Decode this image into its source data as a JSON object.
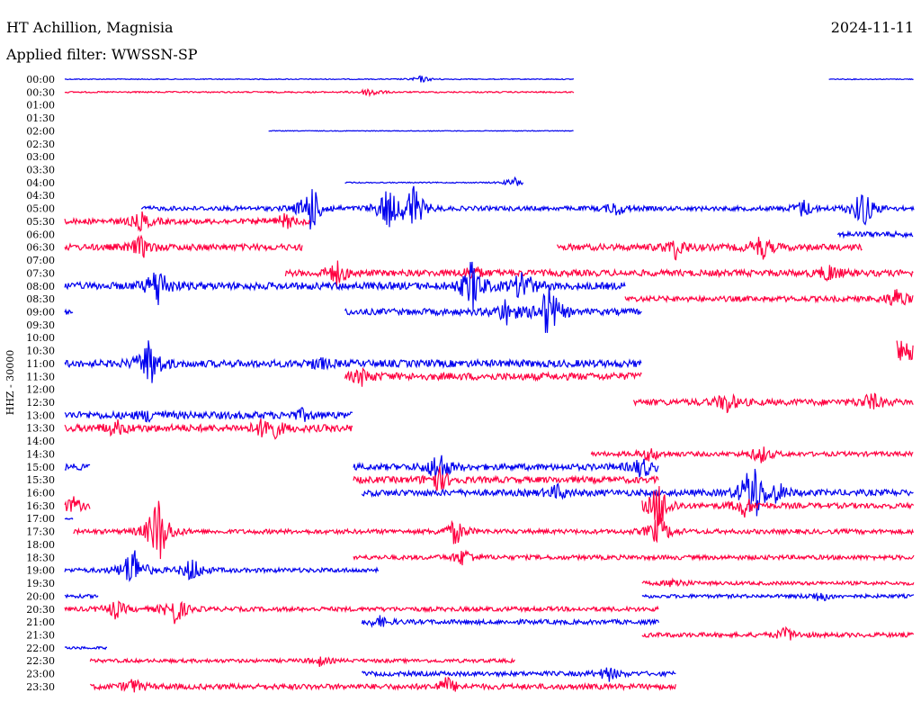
{
  "header": {
    "station": "HT Achillion, Magnisia",
    "date": "2024-11-11",
    "filter": "Applied filter: WWSSN-SP"
  },
  "chart_data": {
    "type": "line",
    "title": "HT Achillion, Magnisia",
    "date": "2024-11-11",
    "filter": "Applied filter: WWSSN-SP",
    "ylabel": "HHZ - 30000",
    "row_labels": [
      "00:00",
      "00:30",
      "01:00",
      "01:30",
      "02:00",
      "02:30",
      "03:00",
      "03:30",
      "04:00",
      "04:30",
      "05:00",
      "05:30",
      "06:00",
      "06:30",
      "07:00",
      "07:30",
      "08:00",
      "08:30",
      "09:00",
      "09:30",
      "10:00",
      "10:30",
      "11:00",
      "11:30",
      "12:00",
      "12:30",
      "13:00",
      "13:30",
      "14:00",
      "14:30",
      "15:00",
      "15:30",
      "16:00",
      "16:30",
      "17:00",
      "17:30",
      "18:00",
      "18:30",
      "19:00",
      "19:30",
      "20:00",
      "20:30",
      "21:00",
      "21:30",
      "22:00",
      "22:30",
      "23:00",
      "23:30"
    ],
    "colors": [
      "#0000ee",
      "#ff0040"
    ],
    "x_range": [
      0,
      1
    ],
    "rows": [
      {
        "segments": [
          [
            0.0,
            0.6
          ],
          [
            0.9,
            1.0
          ]
        ],
        "noise": 0.5,
        "events": [
          [
            0.42,
            4
          ]
        ]
      },
      {
        "segments": [
          [
            0.0,
            0.6
          ]
        ],
        "noise": 0.8,
        "events": [
          [
            0.36,
            6
          ]
        ]
      },
      {
        "segments": [],
        "noise": 0,
        "events": []
      },
      {
        "segments": [],
        "noise": 0,
        "events": []
      },
      {
        "segments": [
          [
            0.24,
            0.6
          ]
        ],
        "noise": 0.4,
        "events": []
      },
      {
        "segments": [],
        "noise": 0,
        "events": []
      },
      {
        "segments": [],
        "noise": 0,
        "events": []
      },
      {
        "segments": [],
        "noise": 0,
        "events": []
      },
      {
        "segments": [
          [
            0.33,
            0.54
          ]
        ],
        "noise": 0.6,
        "events": [
          [
            0.53,
            6
          ]
        ]
      },
      {
        "segments": [],
        "noise": 0,
        "events": []
      },
      {
        "segments": [
          [
            0.09,
            1.0
          ]
        ],
        "noise": 2.5,
        "events": [
          [
            0.29,
            30
          ],
          [
            0.38,
            25
          ],
          [
            0.41,
            30
          ],
          [
            0.65,
            8
          ],
          [
            0.87,
            10
          ],
          [
            0.94,
            25
          ]
        ]
      },
      {
        "segments": [
          [
            0.0,
            0.29
          ]
        ],
        "noise": 3,
        "events": [
          [
            0.09,
            10
          ],
          [
            0.26,
            8
          ]
        ]
      },
      {
        "segments": [
          [
            0.91,
            1.0
          ]
        ],
        "noise": 3,
        "events": []
      },
      {
        "segments": [
          [
            0.0,
            0.28
          ],
          [
            0.58,
            0.94
          ]
        ],
        "noise": 3.5,
        "events": [
          [
            0.09,
            12
          ],
          [
            0.72,
            12
          ],
          [
            0.82,
            14
          ]
        ]
      },
      {
        "segments": [],
        "noise": 0,
        "events": []
      },
      {
        "segments": [
          [
            0.26,
            1.0
          ]
        ],
        "noise": 3.5,
        "events": [
          [
            0.32,
            14
          ],
          [
            0.48,
            8
          ],
          [
            0.9,
            10
          ]
        ]
      },
      {
        "segments": [
          [
            0.0,
            0.66
          ]
        ],
        "noise": 4,
        "events": [
          [
            0.11,
            25
          ],
          [
            0.48,
            30
          ],
          [
            0.54,
            20
          ]
        ]
      },
      {
        "segments": [
          [
            0.66,
            1.0
          ]
        ],
        "noise": 3,
        "events": [
          [
            0.98,
            12
          ]
        ]
      },
      {
        "segments": [
          [
            0.0,
            0.01
          ],
          [
            0.33,
            0.68
          ]
        ],
        "noise": 3.5,
        "events": [
          [
            0.52,
            15
          ],
          [
            0.57,
            35
          ]
        ]
      },
      {
        "segments": [],
        "noise": 0,
        "events": []
      },
      {
        "segments": [],
        "noise": 0,
        "events": []
      },
      {
        "segments": [
          [
            0.98,
            1.0
          ]
        ],
        "noise": 12,
        "events": []
      },
      {
        "segments": [
          [
            0.0,
            0.68
          ]
        ],
        "noise": 4,
        "events": [
          [
            0.1,
            30
          ],
          [
            0.3,
            6
          ]
        ]
      },
      {
        "segments": [
          [
            0.33,
            0.68
          ]
        ],
        "noise": 4,
        "events": [
          [
            0.35,
            8
          ]
        ]
      },
      {
        "segments": [],
        "noise": 0,
        "events": []
      },
      {
        "segments": [
          [
            0.67,
            1.0
          ]
        ],
        "noise": 3.5,
        "events": [
          [
            0.78,
            12
          ],
          [
            0.95,
            10
          ]
        ]
      },
      {
        "segments": [
          [
            0.0,
            0.34
          ]
        ],
        "noise": 4,
        "events": [
          [
            0.1,
            6
          ],
          [
            0.28,
            5
          ]
        ]
      },
      {
        "segments": [
          [
            0.0,
            0.34
          ]
        ],
        "noise": 4,
        "events": [
          [
            0.06,
            8
          ],
          [
            0.24,
            20
          ]
        ]
      },
      {
        "segments": [],
        "noise": 0,
        "events": []
      },
      {
        "segments": [
          [
            0.62,
            1.0
          ]
        ],
        "noise": 2.5,
        "events": [
          [
            0.69,
            8
          ],
          [
            0.82,
            10
          ]
        ]
      },
      {
        "segments": [
          [
            0.0,
            0.03
          ],
          [
            0.34,
            0.7
          ]
        ],
        "noise": 3.5,
        "events": [
          [
            0.44,
            20
          ],
          [
            0.68,
            12
          ]
        ]
      },
      {
        "segments": [
          [
            0.34,
            0.7
          ]
        ],
        "noise": 3.5,
        "events": [
          [
            0.44,
            14
          ]
        ]
      },
      {
        "segments": [
          [
            0.35,
            1.0
          ]
        ],
        "noise": 3.5,
        "events": [
          [
            0.58,
            8
          ],
          [
            0.81,
            45
          ],
          [
            0.84,
            10
          ]
        ]
      },
      {
        "segments": [
          [
            0.0,
            0.03
          ],
          [
            0.68,
            1.0
          ]
        ],
        "noise": 3,
        "events": [
          [
            0.01,
            8
          ],
          [
            0.7,
            30
          ],
          [
            0.8,
            12
          ]
        ]
      },
      {
        "segments": [
          [
            0.0,
            0.01
          ]
        ],
        "noise": 1,
        "events": []
      },
      {
        "segments": [
          [
            0.01,
            1.0
          ]
        ],
        "noise": 2.5,
        "events": [
          [
            0.11,
            45
          ],
          [
            0.46,
            15
          ],
          [
            0.7,
            20
          ]
        ]
      },
      {
        "segments": [],
        "noise": 0,
        "events": []
      },
      {
        "segments": [
          [
            0.34,
            1.0
          ]
        ],
        "noise": 2.5,
        "events": [
          [
            0.47,
            10
          ]
        ]
      },
      {
        "segments": [
          [
            0.0,
            0.37
          ]
        ],
        "noise": 2.5,
        "events": [
          [
            0.08,
            30
          ],
          [
            0.15,
            15
          ]
        ]
      },
      {
        "segments": [
          [
            0.68,
            1.0
          ]
        ],
        "noise": 2,
        "events": [
          [
            0.72,
            6
          ]
        ]
      },
      {
        "segments": [
          [
            0.0,
            0.04
          ],
          [
            0.68,
            1.0
          ]
        ],
        "noise": 2,
        "events": [
          [
            0.89,
            6
          ]
        ]
      },
      {
        "segments": [
          [
            0.0,
            0.7
          ]
        ],
        "noise": 2.5,
        "events": [
          [
            0.06,
            10
          ],
          [
            0.13,
            18
          ]
        ]
      },
      {
        "segments": [
          [
            0.35,
            0.7
          ]
        ],
        "noise": 2.5,
        "events": [
          [
            0.37,
            6
          ]
        ]
      },
      {
        "segments": [
          [
            0.68,
            1.0
          ]
        ],
        "noise": 2.5,
        "events": [
          [
            0.85,
            8
          ]
        ]
      },
      {
        "segments": [
          [
            0.0,
            0.05
          ]
        ],
        "noise": 1.5,
        "events": []
      },
      {
        "segments": [
          [
            0.03,
            0.53
          ]
        ],
        "noise": 2,
        "events": [
          [
            0.3,
            5
          ]
        ]
      },
      {
        "segments": [
          [
            0.35,
            0.72
          ]
        ],
        "noise": 2.5,
        "events": [
          [
            0.64,
            8
          ]
        ]
      },
      {
        "segments": [
          [
            0.03,
            0.72
          ]
        ],
        "noise": 3,
        "events": [
          [
            0.08,
            8
          ],
          [
            0.45,
            10
          ]
        ]
      }
    ]
  }
}
